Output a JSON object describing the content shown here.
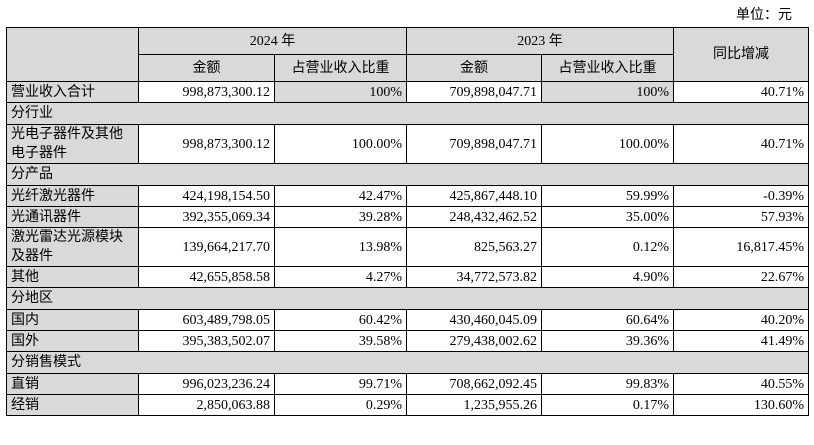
{
  "header": {
    "unit": "单位：元"
  },
  "table": {
    "group_headers": [
      "2024 年",
      "2023 年"
    ],
    "yoy_header": "同比增减",
    "sub_headers": [
      "金额",
      "占营业收入比重",
      "金额",
      "占营业收入比重"
    ],
    "rows": [
      {
        "label": "营业收入合计",
        "cells": [
          "998,873,300.12",
          "100%",
          "709,898,047.71",
          "100%",
          "40.71%"
        ]
      },
      {
        "section": "分行业"
      },
      {
        "label": "光电子器件及其他电子器件",
        "cells": [
          "998,873,300.12",
          "100.00%",
          "709,898,047.71",
          "100.00%",
          "40.71%"
        ]
      },
      {
        "section": "分产品"
      },
      {
        "label": "光纤激光器件",
        "cells": [
          "424,198,154.50",
          "42.47%",
          "425,867,448.10",
          "59.99%",
          "-0.39%"
        ]
      },
      {
        "label": "光通讯器件",
        "cells": [
          "392,355,069.34",
          "39.28%",
          "248,432,462.52",
          "35.00%",
          "57.93%"
        ]
      },
      {
        "label": "激光雷达光源模块及器件",
        "cells": [
          "139,664,217.70",
          "13.98%",
          "825,563.27",
          "0.12%",
          "16,817.45%"
        ]
      },
      {
        "label": "其他",
        "cells": [
          "42,655,858.58",
          "4.27%",
          "34,772,573.82",
          "4.90%",
          "22.67%"
        ]
      },
      {
        "section": "分地区"
      },
      {
        "label": "国内",
        "cells": [
          "603,489,798.05",
          "60.42%",
          "430,460,045.09",
          "60.64%",
          "40.20%"
        ]
      },
      {
        "label": "国外",
        "cells": [
          "395,383,502.07",
          "39.58%",
          "279,438,002.62",
          "39.36%",
          "41.49%"
        ]
      },
      {
        "section": "分销售模式"
      },
      {
        "label": "直销",
        "cells": [
          "996,023,236.24",
          "99.71%",
          "708,662,092.45",
          "99.83%",
          "40.55%"
        ]
      },
      {
        "label": "经销",
        "cells": [
          "2,850,063.88",
          "0.29%",
          "1,235,955.26",
          "0.17%",
          "130.60%"
        ]
      }
    ]
  }
}
